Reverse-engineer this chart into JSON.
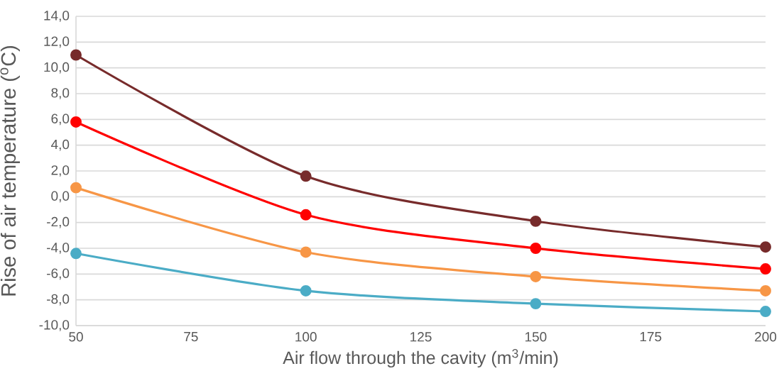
{
  "chart_data": {
    "type": "line",
    "xlabel": "Air flow through the cavity (m$^{3}$/min)",
    "ylabel": "Rise of air temperature  ($^{o}$C)",
    "x": [
      50,
      100,
      150,
      200
    ],
    "series": [
      {
        "color": "#772b2b",
        "values": [
          11.0,
          1.6,
          -1.9,
          -3.9
        ]
      },
      {
        "color": "#ff0000",
        "values": [
          5.8,
          -1.4,
          -4.0,
          -5.6
        ]
      },
      {
        "color": "#f79646",
        "values": [
          0.7,
          -4.3,
          -6.2,
          -7.3
        ]
      },
      {
        "color": "#4bacc6",
        "values": [
          -4.4,
          -7.3,
          -8.3,
          -8.9
        ]
      }
    ],
    "xlim": [
      50,
      200
    ],
    "xticks": [
      50,
      75,
      100,
      125,
      150,
      175,
      200
    ],
    "ylim": [
      -10,
      14
    ],
    "yticks": [
      {
        "value": -10,
        "label": "-10,0"
      },
      {
        "value": -8,
        "label": "-8,0"
      },
      {
        "value": -6,
        "label": "-6,0"
      },
      {
        "value": -4,
        "label": "-4,0"
      },
      {
        "value": -2,
        "label": "-2,0"
      },
      {
        "value": 0,
        "label": "0,0"
      },
      {
        "value": 2,
        "label": "2,0"
      },
      {
        "value": 4,
        "label": "4,0"
      },
      {
        "value": 6,
        "label": "6,0"
      },
      {
        "value": 8,
        "label": "8,0"
      },
      {
        "value": 10,
        "label": "10,0"
      },
      {
        "value": 12,
        "label": "12,0"
      },
      {
        "value": 14,
        "label": "14,0"
      }
    ],
    "grid": "y",
    "marker": "circle",
    "line_style": "solid"
  }
}
